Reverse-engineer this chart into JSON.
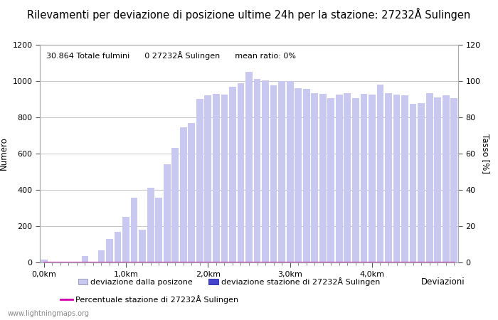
{
  "title": "Rilevamenti per deviazione di posizione ultime 24h per la stazione: 27232Å Sulingen",
  "subtitle": "30.864 Totale fulmini      0 27232Å Sulingen      mean ratio: 0%",
  "ylabel_left": "Numero",
  "ylabel_right": "Tasso [%]",
  "xlabel": "Deviazioni",
  "ylim_left": [
    0,
    1200
  ],
  "ylim_right": [
    0,
    120
  ],
  "yticks_left": [
    0,
    200,
    400,
    600,
    800,
    1000,
    1200
  ],
  "yticks_right": [
    0,
    20,
    40,
    60,
    80,
    100,
    120
  ],
  "xtick_labels": [
    "0,0km",
    "1,0km",
    "2,0km",
    "3,0km",
    "4,0km"
  ],
  "xtick_positions": [
    0,
    10,
    20,
    30,
    40
  ],
  "bar_values": [
    15,
    2,
    2,
    2,
    2,
    35,
    2,
    65,
    130,
    170,
    250,
    355,
    180,
    410,
    355,
    540,
    630,
    745,
    770,
    900,
    920,
    930,
    925,
    970,
    990,
    1050,
    1010,
    1005,
    975,
    1000,
    1000,
    960,
    955,
    935,
    930,
    905,
    925,
    935,
    905,
    930,
    925,
    980,
    935,
    925,
    920,
    875,
    880,
    935,
    910,
    920,
    905
  ],
  "station_bar_values": [
    0,
    0,
    0,
    0,
    0,
    0,
    0,
    0,
    0,
    0,
    0,
    0,
    0,
    0,
    0,
    0,
    0,
    0,
    0,
    0,
    0,
    0,
    0,
    0,
    0,
    0,
    0,
    0,
    0,
    0,
    0,
    0,
    0,
    0,
    0,
    0,
    0,
    0,
    0,
    0,
    0,
    0,
    0,
    0,
    0,
    0,
    0,
    0,
    0,
    0,
    0
  ],
  "bar_color": "#c8c8f0",
  "station_bar_color": "#4444cc",
  "line_color": "#cc00aa",
  "line_values": [
    0,
    0,
    0,
    0,
    0,
    0,
    0,
    0,
    0,
    0,
    0,
    0,
    0,
    0,
    0,
    0,
    0,
    0,
    0,
    0,
    0,
    0,
    0,
    0,
    0,
    0,
    0,
    0,
    0,
    0,
    0,
    0,
    0,
    0,
    0,
    0,
    0,
    0,
    0,
    0,
    0,
    0,
    0,
    0,
    0,
    0,
    0,
    0,
    0,
    0,
    0
  ],
  "background_color": "#ffffff",
  "grid_color": "#bbbbbb",
  "legend_label_bar": "deviazione dalla posizone",
  "legend_label_station": "deviazione stazione di 27232Å Sulingen",
  "legend_label_line": "Percentuale stazione di 27232Å Sulingen",
  "watermark": "www.lightningmaps.org",
  "title_fontsize": 10.5,
  "subtitle_fontsize": 8,
  "axis_fontsize": 8.5,
  "tick_fontsize": 8,
  "legend_fontsize": 8
}
